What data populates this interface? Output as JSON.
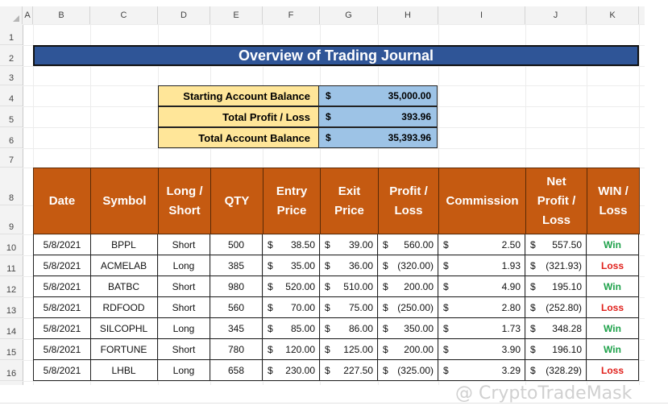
{
  "sheet": {
    "columns": [
      "A",
      "B",
      "C",
      "D",
      "E",
      "F",
      "G",
      "H",
      "I",
      "J",
      "K"
    ],
    "rows": [
      "1",
      "2",
      "3",
      "4",
      "5",
      "6",
      "7",
      "8",
      "9",
      "10",
      "11",
      "12",
      "13",
      "14",
      "15",
      "16"
    ]
  },
  "title": "Overview of Trading Journal",
  "summary": [
    {
      "label": "Starting Account Balance",
      "currency": "$",
      "value": "35,000.00"
    },
    {
      "label": "Total Profit / Loss",
      "currency": "$",
      "value": "393.96"
    },
    {
      "label": "Total Account Balance",
      "currency": "$",
      "value": "35,393.96"
    }
  ],
  "table": {
    "headers": [
      "Date",
      "Symbol",
      "Long / Short",
      "QTY",
      "Entry Price",
      "Exit Price",
      "Profit / Loss",
      "Commission",
      "Net Profit / Loss",
      "WIN / Loss"
    ],
    "rows": [
      {
        "date": "5/8/2021",
        "symbol": "BPPL",
        "side": "Short",
        "qty": "500",
        "entry": "38.50",
        "exit": "39.00",
        "pl": "560.00",
        "comm": "2.50",
        "net": "557.50",
        "result": "Win"
      },
      {
        "date": "5/8/2021",
        "symbol": "ACMELAB",
        "side": "Long",
        "qty": "385",
        "entry": "35.00",
        "exit": "36.00",
        "pl": "(320.00)",
        "comm": "1.93",
        "net": "(321.93)",
        "result": "Loss"
      },
      {
        "date": "5/8/2021",
        "symbol": "BATBC",
        "side": "Short",
        "qty": "980",
        "entry": "520.00",
        "exit": "510.00",
        "pl": "200.00",
        "comm": "4.90",
        "net": "195.10",
        "result": "Win"
      },
      {
        "date": "5/8/2021",
        "symbol": "RDFOOD",
        "side": "Short",
        "qty": "560",
        "entry": "70.00",
        "exit": "75.00",
        "pl": "(250.00)",
        "comm": "2.80",
        "net": "(252.80)",
        "result": "Loss"
      },
      {
        "date": "5/8/2021",
        "symbol": "SILCOPHL",
        "side": "Long",
        "qty": "345",
        "entry": "85.00",
        "exit": "86.00",
        "pl": "350.00",
        "comm": "1.73",
        "net": "348.28",
        "result": "Win"
      },
      {
        "date": "5/8/2021",
        "symbol": "FORTUNE",
        "side": "Short",
        "qty": "780",
        "entry": "120.00",
        "exit": "125.00",
        "pl": "200.00",
        "comm": "3.90",
        "net": "196.10",
        "result": "Win"
      },
      {
        "date": "5/8/2021",
        "symbol": "LHBL",
        "side": "Long",
        "qty": "658",
        "entry": "230.00",
        "exit": "227.50",
        "pl": "(325.00)",
        "comm": "3.29",
        "net": "(328.29)",
        "result": "Loss"
      }
    ]
  },
  "currency_symbol": "$",
  "colors": {
    "title_bg": "#2f5597",
    "header_bg": "#c55a11",
    "label_bg": "#ffe699",
    "value_bg": "#9dc3e6",
    "win": "#1ea14a",
    "loss": "#e0201b"
  },
  "watermark": "@ CryptoTradeMask"
}
